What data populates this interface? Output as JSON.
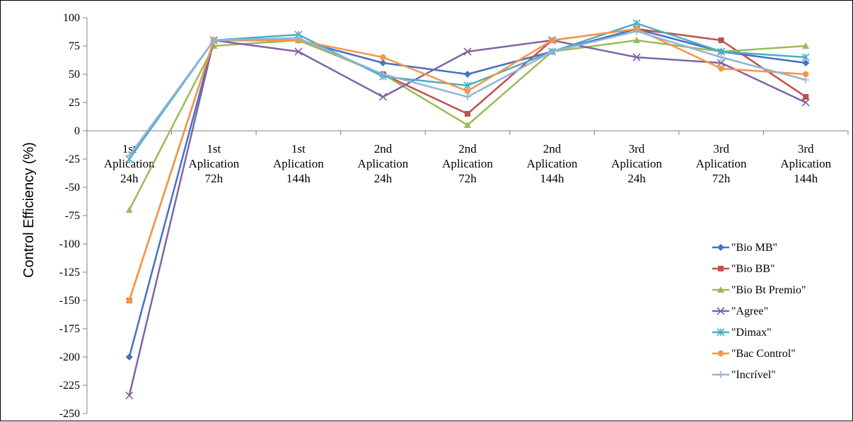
{
  "chart_data": {
    "type": "line",
    "title": "",
    "xlabel": "",
    "ylabel": "Control Efficiency (%)",
    "ylim": [
      -250,
      100
    ],
    "yticks": [
      100,
      75,
      50,
      25,
      0,
      -25,
      -50,
      -75,
      -100,
      -125,
      -150,
      -175,
      -200,
      -225,
      -250
    ],
    "categories": [
      [
        "1st",
        "Aplication",
        "24h"
      ],
      [
        "1st",
        "Aplication",
        "72h"
      ],
      [
        "1st",
        "Aplication",
        "144h"
      ],
      [
        "2nd",
        "Aplication",
        "24h"
      ],
      [
        "2nd",
        "Aplication",
        "72h"
      ],
      [
        "2nd",
        "Aplication",
        "144h"
      ],
      [
        "3rd",
        "Aplication",
        "24h"
      ],
      [
        "3rd",
        "Aplication",
        "72h"
      ],
      [
        "3rd",
        "Aplication",
        "144h"
      ]
    ],
    "grid": false,
    "legend_position": "right",
    "series": [
      {
        "name": "\"Bio MB\"",
        "color": "#4472c4",
        "marker": "diamond",
        "values": [
          -200,
          80,
          80,
          60,
          50,
          70,
          90,
          70,
          60
        ]
      },
      {
        "name": "\"Bio BB\"",
        "color": "#c0504d",
        "marker": "square",
        "values": [
          -150,
          80,
          80,
          50,
          15,
          80,
          90,
          80,
          30
        ]
      },
      {
        "name": "\"Bio Bt Premio\"",
        "color": "#9bbb59",
        "marker": "triangle",
        "values": [
          -70,
          75,
          80,
          50,
          5,
          70,
          80,
          70,
          75
        ]
      },
      {
        "name": "\"Agree\"",
        "color": "#8064a2",
        "marker": "x",
        "values": [
          -234,
          80,
          70,
          30,
          70,
          80,
          65,
          60,
          25
        ]
      },
      {
        "name": "\"Dimax\"",
        "color": "#4bacc6",
        "marker": "star",
        "values": [
          -25,
          80,
          85,
          48,
          40,
          70,
          95,
          70,
          65
        ]
      },
      {
        "name": "\"Bac Control\"",
        "color": "#f79646",
        "marker": "circle",
        "values": [
          -150,
          80,
          80,
          65,
          35,
          80,
          90,
          55,
          50
        ]
      },
      {
        "name": "\"Incrível\"",
        "color": "#95b3d7",
        "marker": "plus",
        "values": [
          -22,
          80,
          82,
          50,
          30,
          70,
          88,
          65,
          45
        ]
      }
    ]
  }
}
